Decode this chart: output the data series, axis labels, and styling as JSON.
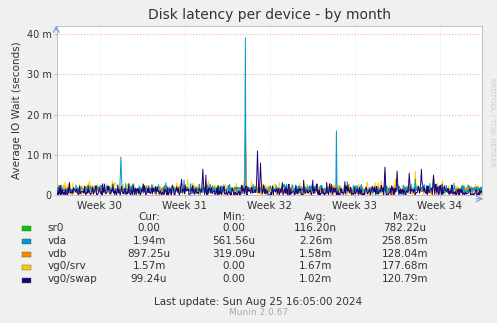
{
  "title": "Disk latency per device - by month",
  "ylabel": "Average IO Wait (seconds)",
  "background_color": "#f0f0f0",
  "plot_bg_color": "#ffffff",
  "ytick_labels": [
    "0",
    "10 m",
    "20 m",
    "30 m",
    "40 m"
  ],
  "ytick_vals": [
    0,
    10,
    20,
    30,
    40
  ],
  "ylim": [
    0,
    42
  ],
  "xtick_labels": [
    "Week 30",
    "Week 31",
    "Week 32",
    "Week 33",
    "Week 34"
  ],
  "series_colors": {
    "sr0": "#00cc00",
    "vda": "#0099cc",
    "vdb": "#ff8800",
    "vg0_srv": "#ffcc00",
    "vg0_swap": "#220077"
  },
  "legend_labels": [
    "sr0",
    "vda",
    "vdb",
    "vg0/srv",
    "vg0/swap"
  ],
  "legend_colors": [
    "#00cc00",
    "#0099cc",
    "#ff8800",
    "#ffcc00",
    "#220077"
  ],
  "table_headers": [
    "Cur:",
    "Min:",
    "Avg:",
    "Max:"
  ],
  "table_data": [
    [
      "0.00",
      "0.00",
      "116.20n",
      "782.22u"
    ],
    [
      "1.94m",
      "561.56u",
      "2.26m",
      "258.85m"
    ],
    [
      "897.25u",
      "319.09u",
      "1.58m",
      "128.04m"
    ],
    [
      "1.57m",
      "0.00",
      "1.67m",
      "177.68m"
    ],
    [
      "99.24u",
      "0.00",
      "1.02m",
      "120.79m"
    ]
  ],
  "last_update": "Last update: Sun Aug 25 16:05:00 2024",
  "munin_version": "Munin 2.0.67",
  "rrdtool_label": "RRDTOOL / TOBI OETIKER",
  "num_points": 700
}
